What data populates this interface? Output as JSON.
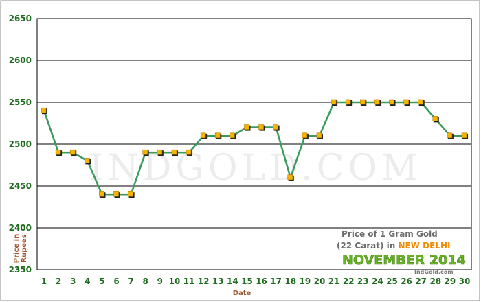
{
  "chart_data": {
    "type": "line",
    "xlabel": "Date",
    "ylabel": [
      "Price in",
      "Rupees"
    ],
    "x": [
      1,
      2,
      3,
      4,
      5,
      6,
      7,
      8,
      9,
      10,
      11,
      12,
      13,
      14,
      15,
      16,
      17,
      18,
      19,
      20,
      21,
      22,
      23,
      24,
      25,
      26,
      27,
      28,
      29,
      30
    ],
    "series": [
      {
        "values": [
          2540,
          2490,
          2490,
          2480,
          2440,
          2440,
          2440,
          2490,
          2490,
          2490,
          2490,
          2510,
          2510,
          2510,
          2520,
          2520,
          2520,
          2460,
          2510,
          2510,
          2550,
          2550,
          2550,
          2550,
          2550,
          2550,
          2550,
          2530,
          2510,
          2510
        ]
      }
    ],
    "yticks": [
      2350,
      2400,
      2450,
      2500,
      2550,
      2600,
      2650
    ],
    "ylim": [
      2350,
      2650
    ],
    "grid": "horizontal",
    "annotations": {
      "watermark": "INDGOLD.COM",
      "caption_line1": "Price of 1 Gram Gold",
      "caption_line2_prefix": "(22 Carat) in ",
      "caption_city": "NEW DELHI",
      "caption_month": "NOVEMBER 2014",
      "source": "IndGold.com"
    },
    "colors": {
      "line": "#3c9a5f",
      "marker_fill": "#f5b400",
      "marker_shadow": "#222222",
      "axis_text": "#1d6b1d",
      "axis_title": "#a0522d",
      "grid": "#000000"
    }
  }
}
